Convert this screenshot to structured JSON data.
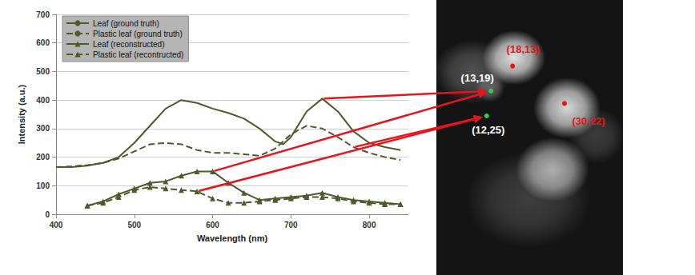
{
  "chart_data": {
    "type": "line",
    "x_label": "Wavelength (nm)",
    "y_label": "Intensity (a.u.)",
    "xlim": [
      400,
      850
    ],
    "xticks": [
      400,
      500,
      600,
      700,
      800
    ],
    "ylim": [
      0,
      700
    ],
    "yticks": [
      0,
      100,
      200,
      300,
      400,
      500,
      600,
      700
    ],
    "grid": true,
    "legend": "upper left",
    "series": [
      {
        "name": "Leaf (ground truth)",
        "color": "#4d5a2c",
        "line_style": "solid",
        "marker": "none",
        "x": [
          400,
          420,
          440,
          460,
          480,
          500,
          520,
          540,
          560,
          580,
          600,
          620,
          640,
          660,
          680,
          690,
          700,
          720,
          740,
          760,
          780,
          800,
          820,
          840
        ],
        "values": [
          165,
          165,
          170,
          180,
          200,
          250,
          310,
          370,
          400,
          390,
          370,
          355,
          335,
          300,
          255,
          245,
          270,
          360,
          405,
          360,
          290,
          250,
          235,
          225
        ]
      },
      {
        "name": "Plastic leaf (ground truth)",
        "color": "#4d5a2c",
        "line_style": "dashed",
        "marker": "none",
        "x": [
          400,
          420,
          440,
          460,
          480,
          500,
          520,
          540,
          560,
          580,
          600,
          620,
          640,
          660,
          680,
          700,
          720,
          740,
          760,
          780,
          800,
          820,
          840
        ],
        "values": [
          165,
          168,
          172,
          180,
          195,
          220,
          245,
          250,
          245,
          225,
          215,
          215,
          210,
          205,
          230,
          280,
          310,
          300,
          270,
          235,
          215,
          200,
          190
        ]
      },
      {
        "name": "Leaf (reconstructed)",
        "color": "#4d5a2c",
        "line_style": "solid",
        "marker": "triangle",
        "x": [
          440,
          460,
          480,
          500,
          520,
          540,
          560,
          580,
          600,
          620,
          640,
          660,
          680,
          700,
          720,
          740,
          760,
          780,
          800,
          820,
          840
        ],
        "values": [
          30,
          45,
          70,
          90,
          110,
          115,
          135,
          150,
          150,
          110,
          75,
          50,
          55,
          60,
          65,
          75,
          60,
          50,
          45,
          40,
          35
        ]
      },
      {
        "name": "Plastic leaf (recontructed)",
        "color": "#4d5a2c",
        "line_style": "dashed",
        "marker": "triangle",
        "x": [
          440,
          460,
          480,
          500,
          520,
          540,
          560,
          580,
          600,
          620,
          640,
          660,
          680,
          700,
          720,
          740,
          760,
          780,
          800,
          820,
          840
        ],
        "values": [
          30,
          40,
          60,
          85,
          95,
          90,
          85,
          80,
          55,
          40,
          40,
          45,
          50,
          55,
          60,
          60,
          55,
          45,
          40,
          35,
          35
        ]
      }
    ],
    "annotations": [
      {
        "label": "(18,13)",
        "x": 18,
        "y": 13,
        "color": "#e8141b"
      },
      {
        "label": "(13,19)",
        "x": 13,
        "y": 19,
        "color": "#2fd14a"
      },
      {
        "label": "(12,25)",
        "x": 12,
        "y": 25,
        "color": "#2fd14a"
      },
      {
        "label": "(30,22)",
        "x": 30,
        "y": 22,
        "color": "#e8141b"
      }
    ]
  }
}
